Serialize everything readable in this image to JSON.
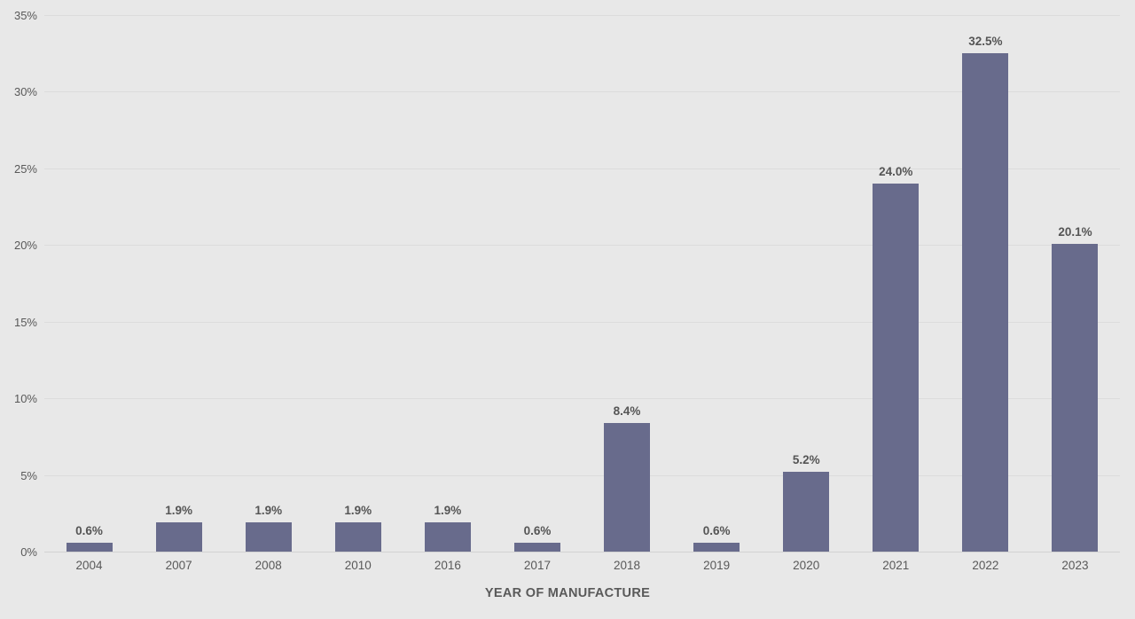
{
  "chart_data": {
    "type": "bar",
    "title": "",
    "xlabel": "YEAR OF MANUFACTURE",
    "ylabel": "",
    "categories": [
      "2004",
      "2007",
      "2008",
      "2010",
      "2016",
      "2017",
      "2018",
      "2019",
      "2020",
      "2021",
      "2022",
      "2023"
    ],
    "values": [
      0.6,
      1.9,
      1.9,
      1.9,
      1.9,
      0.6,
      8.4,
      0.6,
      5.2,
      24.0,
      32.5,
      20.1
    ],
    "value_labels": [
      "0.6%",
      "1.9%",
      "1.9%",
      "1.9%",
      "1.9%",
      "0.6%",
      "8.4%",
      "0.6%",
      "5.2%",
      "24.0%",
      "32.5%",
      "20.1%"
    ],
    "y_tick_labels": [
      "0%",
      "5%",
      "10%",
      "15%",
      "20%",
      "25%",
      "30%",
      "35%"
    ],
    "y_tick_values": [
      0,
      5,
      10,
      15,
      20,
      25,
      30,
      35
    ],
    "ylim": [
      0,
      35
    ],
    "grid": true,
    "legend": false,
    "colors": {
      "bar": "#686b8c",
      "background": "#e8e8e8",
      "gridline": "#dcdcdc",
      "baseline": "#d2d2d2",
      "text": "#595959",
      "value_label_text": "#555555"
    }
  }
}
